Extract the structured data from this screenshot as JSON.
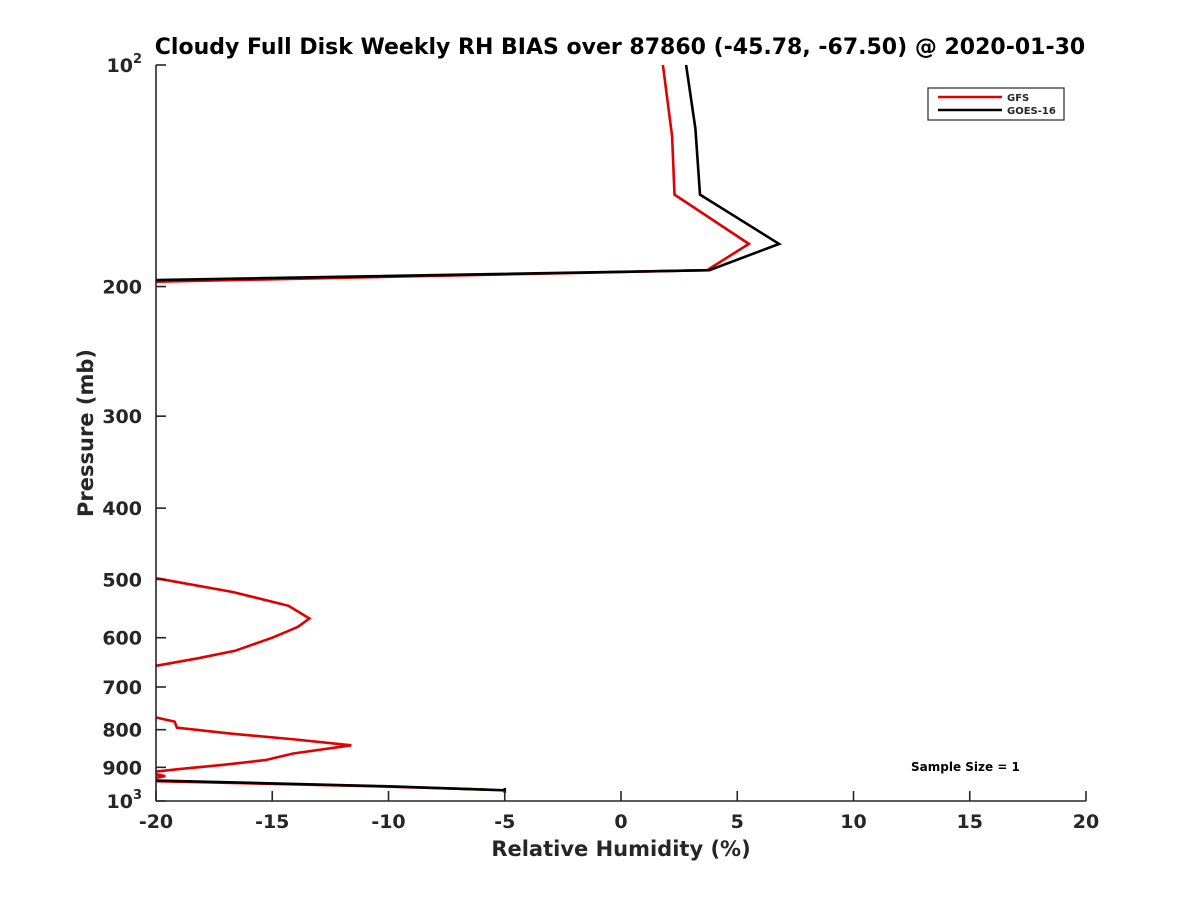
{
  "chart_data": {
    "type": "line",
    "title": "Cloudy Full Disk Weekly RH BIAS over 87860 (-45.78, -67.50) @ 2020-01-30",
    "xlabel": "Relative Humidity (%)",
    "ylabel": "Pressure (mb)",
    "xlim": [
      -20,
      20
    ],
    "ylim": [
      100,
      1000
    ],
    "y_scale": "log",
    "y_reversed": true,
    "x_ticks": [
      "-20",
      "-15",
      "-10",
      "-5",
      "0",
      "5",
      "10",
      "15",
      "20"
    ],
    "y_ticks": [
      {
        "value": 100,
        "label": "10",
        "sup": "2"
      },
      {
        "value": 200,
        "label": "200",
        "sup": ""
      },
      {
        "value": 300,
        "label": "300",
        "sup": ""
      },
      {
        "value": 400,
        "label": "400",
        "sup": ""
      },
      {
        "value": 500,
        "label": "500",
        "sup": ""
      },
      {
        "value": 600,
        "label": "600",
        "sup": ""
      },
      {
        "value": 700,
        "label": "700",
        "sup": ""
      },
      {
        "value": 800,
        "label": "800",
        "sup": ""
      },
      {
        "value": 900,
        "label": "900",
        "sup": ""
      },
      {
        "value": 1000,
        "label": "10",
        "sup": "3"
      }
    ],
    "legend_position": "top-right",
    "grid": false,
    "series": [
      {
        "name": "GFS",
        "color": "#e00000",
        "segments": [
          [
            [
              1.8,
              100
            ],
            [
              2.2,
              125
            ],
            [
              2.3,
              150
            ],
            [
              5.5,
              175
            ],
            [
              3.7,
              190
            ],
            [
              -20,
              197
            ]
          ],
          [
            [
              -20,
              498
            ],
            [
              -16.7,
              520
            ],
            [
              -14.3,
              543
            ],
            [
              -13.4,
              565
            ],
            [
              -13.9,
              580
            ],
            [
              -15.0,
              600
            ],
            [
              -16.6,
              625
            ],
            [
              -18.2,
              640
            ],
            [
              -20,
              655
            ]
          ],
          [
            [
              -20,
              770
            ],
            [
              -19.2,
              780
            ],
            [
              -19.1,
              795
            ],
            [
              -16.8,
              810
            ],
            [
              -14.0,
              825
            ],
            [
              -11.6,
              840
            ],
            [
              -14.1,
              862
            ],
            [
              -15.3,
              880
            ],
            [
              -17.1,
              893
            ],
            [
              -19.0,
              905
            ],
            [
              -20,
              912
            ]
          ],
          [
            [
              -20,
              920
            ],
            [
              -19.6,
              925
            ],
            [
              -20,
              930
            ]
          ],
          [
            [
              -20,
              940
            ],
            [
              -10.5,
              955
            ],
            [
              -5.8,
              965
            ]
          ]
        ]
      },
      {
        "name": "GOES-16",
        "color": "#000000",
        "segments": [
          [
            [
              2.8,
              100
            ],
            [
              3.2,
              122
            ],
            [
              3.4,
              150
            ],
            [
              6.8,
              175
            ],
            [
              3.8,
              190
            ],
            [
              -20,
              196
            ]
          ],
          [
            [
              -20,
              938
            ],
            [
              -10.0,
              955
            ],
            [
              -5.0,
              967
            ]
          ],
          [
            [
              -5.0,
              960
            ],
            [
              -5.0,
              975
            ]
          ]
        ]
      }
    ],
    "annotations": [
      "Sample Size = 1"
    ]
  }
}
